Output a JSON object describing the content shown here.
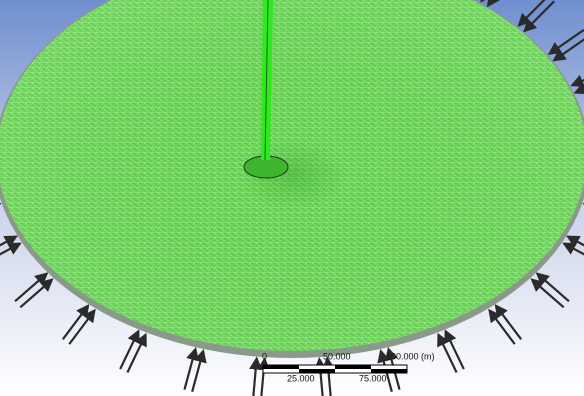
{
  "scale_bar": {
    "labels_top": [
      "0",
      "50.000",
      "100.000 (m)"
    ],
    "labels_bottom": [
      "25.000",
      "75.000"
    ]
  }
}
